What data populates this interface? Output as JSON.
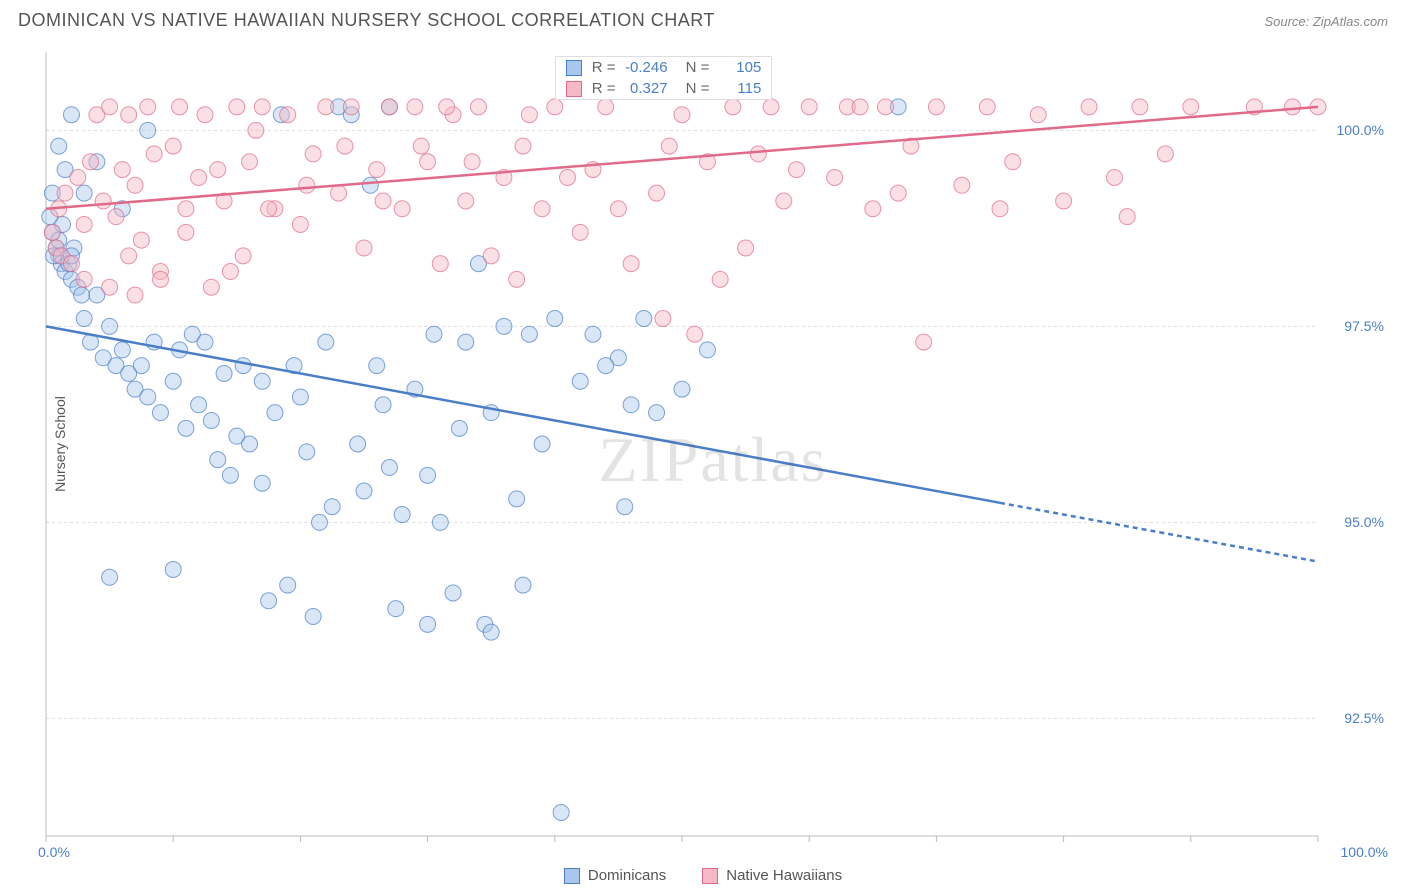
{
  "title": "DOMINICAN VS NATIVE HAWAIIAN NURSERY SCHOOL CORRELATION CHART",
  "source": "Source: ZipAtlas.com",
  "watermark": "ZIPatlas",
  "y_axis_label": "Nursery School",
  "chart": {
    "type": "scatter",
    "xlim": [
      0,
      100
    ],
    "ylim": [
      91,
      101
    ],
    "background_color": "#ffffff",
    "grid_color": "#dddddd",
    "axis_color": "#bbbbbb",
    "axis_label_color": "#4a7ec7",
    "x_ticks": [
      0,
      10,
      20,
      30,
      40,
      50,
      60,
      70,
      80,
      90,
      100
    ],
    "x_tick_labels": {
      "0": "0.0%",
      "100": "100.0%"
    },
    "y_ticks": [
      92.5,
      95.0,
      97.5,
      100.0
    ],
    "y_tick_labels": [
      "92.5%",
      "95.0%",
      "97.5%",
      "100.0%"
    ],
    "marker_radius": 8,
    "marker_opacity": 0.45,
    "line_width": 2.5
  },
  "series": [
    {
      "name": "Dominicans",
      "color_fill": "#a9c7ec",
      "color_stroke": "#4a7ec7",
      "R": "-0.246",
      "N": "105",
      "trend": {
        "x1": 0,
        "y1": 97.5,
        "x2": 100,
        "y2": 94.5,
        "solid_until_x": 75
      },
      "points": [
        [
          0.5,
          98.7
        ],
        [
          0.8,
          98.5
        ],
        [
          1.0,
          98.4
        ],
        [
          1.2,
          98.3
        ],
        [
          1.5,
          98.2
        ],
        [
          1.8,
          98.3
        ],
        [
          2.0,
          98.1
        ],
        [
          2.2,
          98.5
        ],
        [
          2.5,
          98.0
        ],
        [
          2.8,
          97.9
        ],
        [
          1.0,
          98.6
        ],
        [
          1.3,
          98.8
        ],
        [
          0.6,
          98.4
        ],
        [
          2.0,
          98.4
        ],
        [
          3.0,
          97.6
        ],
        [
          3.5,
          97.3
        ],
        [
          4.0,
          97.9
        ],
        [
          4.5,
          97.1
        ],
        [
          5.0,
          97.5
        ],
        [
          5.5,
          97.0
        ],
        [
          6.0,
          97.2
        ],
        [
          6.5,
          96.9
        ],
        [
          7.0,
          96.7
        ],
        [
          7.5,
          97.0
        ],
        [
          8.0,
          96.6
        ],
        [
          8.5,
          97.3
        ],
        [
          9.0,
          96.4
        ],
        [
          5.0,
          94.3
        ],
        [
          10.0,
          96.8
        ],
        [
          10.5,
          97.2
        ],
        [
          11.0,
          96.2
        ],
        [
          11.5,
          97.4
        ],
        [
          12.0,
          96.5
        ],
        [
          13.0,
          96.3
        ],
        [
          13.5,
          95.8
        ],
        [
          14.0,
          96.9
        ],
        [
          15.0,
          96.1
        ],
        [
          15.5,
          97.0
        ],
        [
          16.0,
          96.0
        ],
        [
          17.0,
          95.5
        ],
        [
          17.5,
          94.0
        ],
        [
          18.0,
          96.4
        ],
        [
          18.5,
          100.2
        ],
        [
          19.0,
          94.2
        ],
        [
          20.0,
          96.6
        ],
        [
          20.5,
          95.9
        ],
        [
          21.0,
          93.8
        ],
        [
          22.0,
          97.3
        ],
        [
          22.5,
          95.2
        ],
        [
          23.0,
          100.3
        ],
        [
          24.0,
          100.2
        ],
        [
          24.5,
          96.0
        ],
        [
          25.0,
          95.4
        ],
        [
          25.5,
          99.3
        ],
        [
          26.0,
          97.0
        ],
        [
          26.5,
          96.5
        ],
        [
          27.0,
          100.3
        ],
        [
          27.5,
          93.9
        ],
        [
          28.0,
          95.1
        ],
        [
          29.0,
          96.7
        ],
        [
          30.0,
          95.6
        ],
        [
          30.5,
          97.4
        ],
        [
          31.0,
          95.0
        ],
        [
          32.0,
          94.1
        ],
        [
          32.5,
          96.2
        ],
        [
          33.0,
          97.3
        ],
        [
          34.0,
          98.3
        ],
        [
          34.5,
          93.7
        ],
        [
          35.0,
          96.4
        ],
        [
          36.0,
          97.5
        ],
        [
          37.0,
          95.3
        ],
        [
          37.5,
          94.2
        ],
        [
          38.0,
          97.4
        ],
        [
          39.0,
          96.0
        ],
        [
          40.0,
          97.6
        ],
        [
          42.0,
          96.8
        ],
        [
          43.0,
          97.4
        ],
        [
          45.0,
          97.1
        ],
        [
          46.0,
          96.5
        ],
        [
          48.0,
          96.4
        ],
        [
          40.5,
          91.3
        ],
        [
          35.0,
          93.6
        ],
        [
          30.0,
          93.7
        ],
        [
          27.0,
          95.7
        ],
        [
          21.5,
          95.0
        ],
        [
          19.5,
          97.0
        ],
        [
          17.0,
          96.8
        ],
        [
          14.5,
          95.6
        ],
        [
          12.5,
          97.3
        ],
        [
          10.0,
          94.4
        ],
        [
          67.0,
          100.3
        ],
        [
          8.0,
          100.0
        ],
        [
          6.0,
          99.0
        ],
        [
          4.0,
          99.6
        ],
        [
          3.0,
          99.2
        ],
        [
          2.0,
          100.2
        ],
        [
          1.5,
          99.5
        ],
        [
          1.0,
          99.8
        ],
        [
          0.5,
          99.2
        ],
        [
          0.3,
          98.9
        ],
        [
          45.5,
          95.2
        ],
        [
          50.0,
          96.7
        ],
        [
          52.0,
          97.2
        ],
        [
          47.0,
          97.6
        ],
        [
          44.0,
          97.0
        ]
      ]
    },
    {
      "name": "Native Hawaiians",
      "color_fill": "#f5b8c6",
      "color_stroke": "#e06a8a",
      "R": "0.327",
      "N": "115",
      "trend": {
        "x1": 0,
        "y1": 99.0,
        "x2": 100,
        "y2": 100.3,
        "solid_until_x": 100
      },
      "points": [
        [
          0.5,
          98.7
        ],
        [
          0.8,
          98.5
        ],
        [
          1.0,
          99.0
        ],
        [
          1.2,
          98.4
        ],
        [
          1.5,
          99.2
        ],
        [
          2.0,
          98.3
        ],
        [
          2.5,
          99.4
        ],
        [
          3.0,
          98.8
        ],
        [
          3.5,
          99.6
        ],
        [
          4.0,
          100.2
        ],
        [
          4.5,
          99.1
        ],
        [
          5.0,
          100.3
        ],
        [
          5.5,
          98.9
        ],
        [
          6.0,
          99.5
        ],
        [
          6.5,
          100.2
        ],
        [
          7.0,
          99.3
        ],
        [
          7.5,
          98.6
        ],
        [
          8.0,
          100.3
        ],
        [
          8.5,
          99.7
        ],
        [
          9.0,
          98.2
        ],
        [
          10.0,
          99.8
        ],
        [
          10.5,
          100.3
        ],
        [
          11.0,
          98.7
        ],
        [
          12.0,
          99.4
        ],
        [
          12.5,
          100.2
        ],
        [
          13.0,
          98.0
        ],
        [
          14.0,
          99.1
        ],
        [
          15.0,
          100.3
        ],
        [
          15.5,
          98.4
        ],
        [
          16.0,
          99.6
        ],
        [
          17.0,
          100.3
        ],
        [
          18.0,
          99.0
        ],
        [
          19.0,
          100.2
        ],
        [
          20.0,
          98.8
        ],
        [
          21.0,
          99.7
        ],
        [
          22.0,
          100.3
        ],
        [
          23.0,
          99.2
        ],
        [
          24.0,
          100.3
        ],
        [
          25.0,
          98.5
        ],
        [
          26.0,
          99.5
        ],
        [
          27.0,
          100.3
        ],
        [
          28.0,
          99.0
        ],
        [
          29.0,
          100.3
        ],
        [
          30.0,
          99.6
        ],
        [
          31.0,
          98.3
        ],
        [
          32.0,
          100.2
        ],
        [
          33.0,
          99.1
        ],
        [
          34.0,
          100.3
        ],
        [
          35.0,
          98.4
        ],
        [
          36.0,
          99.4
        ],
        [
          37.0,
          98.1
        ],
        [
          38.0,
          100.2
        ],
        [
          39.0,
          99.0
        ],
        [
          40.0,
          100.3
        ],
        [
          42.0,
          98.7
        ],
        [
          43.0,
          99.5
        ],
        [
          44.0,
          100.3
        ],
        [
          46.0,
          98.3
        ],
        [
          48.0,
          99.2
        ],
        [
          50.0,
          100.2
        ],
        [
          51.0,
          97.4
        ],
        [
          52.0,
          99.6
        ],
        [
          54.0,
          100.3
        ],
        [
          55.0,
          98.5
        ],
        [
          56.0,
          99.7
        ],
        [
          57.0,
          100.3
        ],
        [
          58.0,
          99.1
        ],
        [
          60.0,
          100.3
        ],
        [
          62.0,
          99.4
        ],
        [
          63.0,
          100.3
        ],
        [
          64.0,
          100.3
        ],
        [
          65.0,
          99.0
        ],
        [
          66.0,
          100.3
        ],
        [
          68.0,
          99.8
        ],
        [
          69.0,
          97.3
        ],
        [
          70.0,
          100.3
        ],
        [
          72.0,
          99.3
        ],
        [
          74.0,
          100.3
        ],
        [
          76.0,
          99.6
        ],
        [
          78.0,
          100.2
        ],
        [
          80.0,
          99.1
        ],
        [
          82.0,
          100.3
        ],
        [
          84.0,
          99.4
        ],
        [
          86.0,
          100.3
        ],
        [
          88.0,
          99.7
        ],
        [
          90.0,
          100.3
        ],
        [
          95.0,
          100.3
        ],
        [
          98.0,
          100.3
        ],
        [
          100.0,
          100.3
        ],
        [
          85.0,
          98.9
        ],
        [
          3.0,
          98.1
        ],
        [
          5.0,
          98.0
        ],
        [
          7.0,
          97.9
        ],
        [
          9.0,
          98.1
        ],
        [
          11.0,
          99.0
        ],
        [
          14.5,
          98.2
        ],
        [
          17.5,
          99.0
        ],
        [
          20.5,
          99.3
        ],
        [
          23.5,
          99.8
        ],
        [
          26.5,
          99.1
        ],
        [
          29.5,
          99.8
        ],
        [
          33.5,
          99.6
        ],
        [
          37.5,
          99.8
        ],
        [
          41.0,
          99.4
        ],
        [
          45.0,
          99.0
        ],
        [
          49.0,
          99.8
        ],
        [
          53.0,
          98.1
        ],
        [
          59.0,
          99.5
        ],
        [
          67.0,
          99.2
        ],
        [
          75.0,
          99.0
        ],
        [
          31.5,
          100.3
        ],
        [
          48.5,
          97.6
        ],
        [
          16.5,
          100.0
        ],
        [
          13.5,
          99.5
        ],
        [
          6.5,
          98.4
        ]
      ]
    }
  ],
  "stat_legend": {
    "r_label": "R =",
    "n_label": "N ="
  },
  "bottom_legend": [
    {
      "label": "Dominicans",
      "fill": "#a9c7ec",
      "stroke": "#4a7ec7"
    },
    {
      "label": "Native Hawaiians",
      "fill": "#f5b8c6",
      "stroke": "#e06a8a"
    }
  ]
}
